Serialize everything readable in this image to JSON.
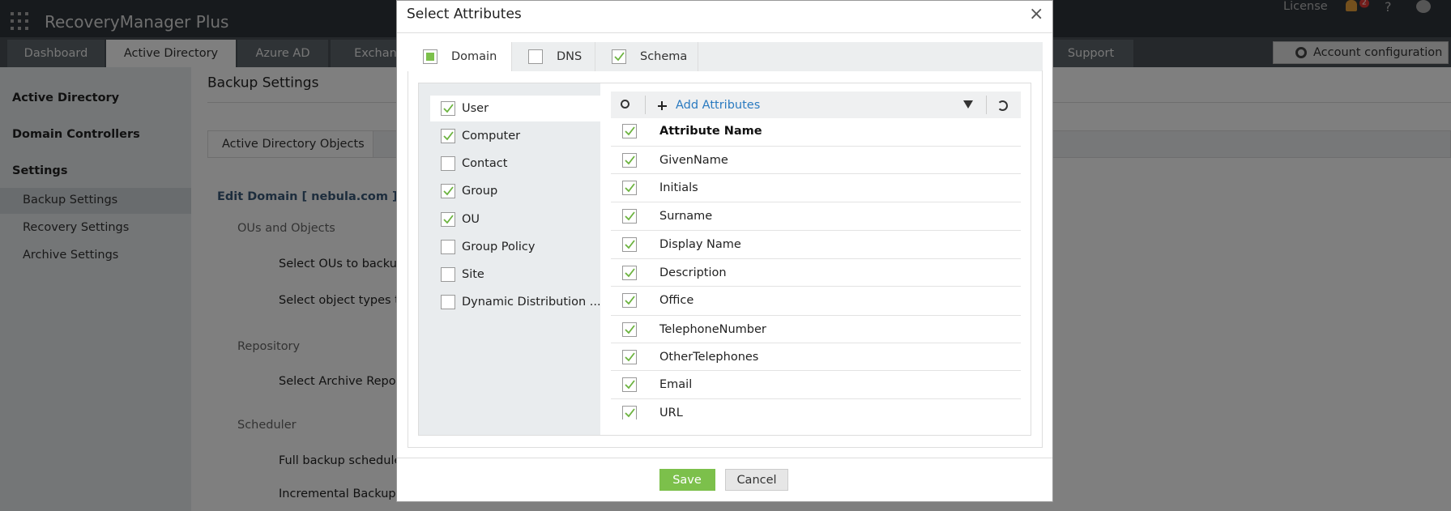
{
  "app": {
    "brand": "RecoveryManager Plus",
    "license": "License",
    "badge": "2",
    "help": "?",
    "nav": [
      "Dashboard",
      "Active Directory",
      "Azure AD",
      "Exchange",
      "Support"
    ],
    "account": "Account configuration"
  },
  "sidebar": {
    "sections": [
      "Active Directory",
      "Domain Controllers",
      "Settings"
    ],
    "items": [
      "Backup Settings",
      "Recovery Settings",
      "Archive Settings"
    ]
  },
  "content": {
    "title": "Backup Settings",
    "tab": "Active Directory Objects",
    "heading": "Edit Domain [ nebula.com ]",
    "lines": [
      {
        "text": "OUs and Objects",
        "level": 1
      },
      {
        "text": "Select OUs to backup",
        "level": 2
      },
      {
        "text": "Select object types to",
        "level": 2
      },
      {
        "text": "Repository",
        "level": 1
      },
      {
        "text": "Select Archive Repos",
        "level": 2
      },
      {
        "text": "Scheduler",
        "level": 1
      },
      {
        "text": "Full backup schedule",
        "level": 2
      },
      {
        "text": "Incremental Backup S",
        "level": 2
      }
    ]
  },
  "dialog": {
    "title": "Select Attributes",
    "close": "×",
    "tabs": [
      {
        "label": "Domain",
        "state": "partial"
      },
      {
        "label": "DNS",
        "state": "unchecked"
      },
      {
        "label": "Schema",
        "state": "checked"
      }
    ],
    "objects": [
      {
        "label": "User",
        "checked": true
      },
      {
        "label": "Computer",
        "checked": true
      },
      {
        "label": "Contact",
        "checked": false
      },
      {
        "label": "Group",
        "checked": true
      },
      {
        "label": "OU",
        "checked": true
      },
      {
        "label": "Group Policy",
        "checked": false
      },
      {
        "label": "Site",
        "checked": false
      },
      {
        "label": "Dynamic Distribution ...",
        "checked": false
      }
    ],
    "add": "Add Attributes",
    "header": "Attribute Name",
    "rows": [
      "GivenName",
      "Initials",
      "Surname",
      "Display Name",
      "Description",
      "Office",
      "TelephoneNumber",
      "OtherTelephones",
      "Email",
      "URL"
    ],
    "save": "Save",
    "cancel": "Cancel"
  }
}
